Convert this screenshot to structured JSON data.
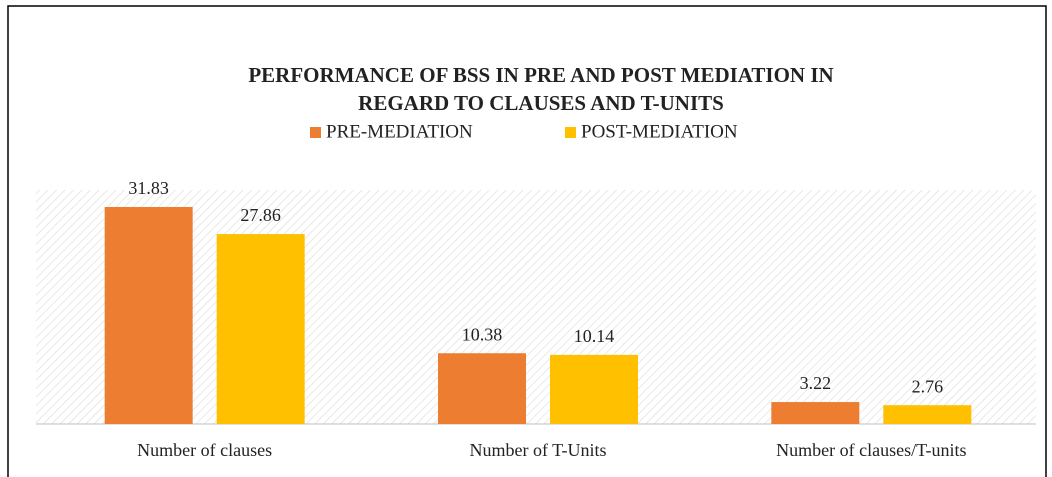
{
  "chart_data": {
    "type": "bar",
    "title": [
      "PERFORMANCE OF BSS IN PRE AND POST MEDIATION IN",
      "REGARD TO CLAUSES AND T-UNITS"
    ],
    "categories": [
      "Number of clauses",
      "Number of T-Units",
      "Number of clauses/T-units"
    ],
    "series": [
      {
        "name": "PRE-MEDIATION",
        "color": "#ed7d31",
        "values": [
          31.83,
          10.38,
          3.22
        ]
      },
      {
        "name": "POST-MEDIATION",
        "color": "#ffc000",
        "values": [
          27.86,
          10.14,
          2.76
        ]
      }
    ],
    "legend": "top"
  }
}
